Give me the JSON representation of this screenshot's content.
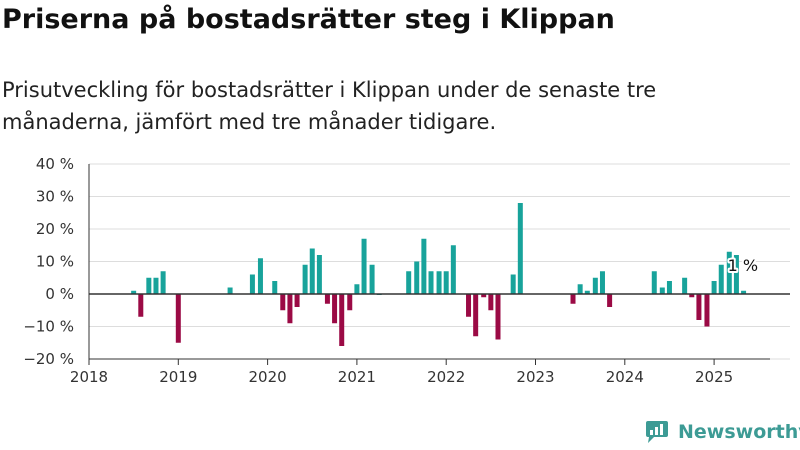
{
  "title": "Priserna på bostadsrätter steg i Klippan",
  "subtitle": "Prisutveckling för bostadsrätter i Klippan under de senaste tre månaderna, jämfört med tre månader tidigare.",
  "brand": "Newsworthy",
  "colors": {
    "positive": "#18a39b",
    "negative": "#9b0a45",
    "axis": "#333333",
    "grid": "#dddddd",
    "brand": "#3d9b95"
  },
  "chart_data": {
    "type": "bar",
    "x_unit": "year (decimal)",
    "ylim": [
      -20,
      40
    ],
    "yticks": [
      -20,
      -10,
      0,
      10,
      20,
      30,
      40
    ],
    "ytick_labels": [
      "−20 %",
      "−10 %",
      "0 %",
      "10 %",
      "20 %",
      "30 %",
      "40 %"
    ],
    "xlim": [
      2018,
      2025.75
    ],
    "xticks": [
      2018,
      2019,
      2020,
      2021,
      2022,
      2023,
      2024,
      2025
    ],
    "xtick_labels": [
      "2018",
      "2019",
      "2020",
      "2021",
      "2022",
      "2023",
      "2024",
      "2025"
    ],
    "grid": true,
    "x": [
      2018.5,
      2018.58,
      2018.67,
      2018.75,
      2018.83,
      2019.0,
      2019.58,
      2019.83,
      2019.92,
      2020.08,
      2020.17,
      2020.25,
      2020.33,
      2020.42,
      2020.5,
      2020.58,
      2020.67,
      2020.75,
      2020.83,
      2020.92,
      2021.0,
      2021.08,
      2021.17,
      2021.25,
      2021.58,
      2021.67,
      2021.75,
      2021.83,
      2021.92,
      2022.0,
      2022.08,
      2022.25,
      2022.33,
      2022.42,
      2022.5,
      2022.58,
      2022.75,
      2022.83,
      2023.42,
      2023.5,
      2023.58,
      2023.67,
      2023.75,
      2023.83,
      2024.33,
      2024.42,
      2024.5,
      2024.67,
      2024.75,
      2024.83,
      2024.92,
      2025.0,
      2025.08,
      2025.17,
      2025.25,
      2025.33
    ],
    "values": [
      1,
      -7,
      5,
      5,
      7,
      -15,
      2,
      6,
      11,
      4,
      -5,
      -9,
      -4,
      9,
      14,
      12,
      -3,
      -9,
      -16,
      -5,
      3,
      17,
      9,
      0,
      7,
      10,
      17,
      7,
      7,
      7,
      15,
      -7,
      -13,
      -1,
      -5,
      -14,
      6,
      28,
      -3,
      3,
      1,
      5,
      7,
      -4,
      7,
      2,
      4,
      5,
      -1,
      -8,
      -10,
      4,
      9,
      13,
      12,
      1
    ],
    "annotation": {
      "x": 2025.33,
      "value": 1,
      "label": "1 %"
    }
  }
}
